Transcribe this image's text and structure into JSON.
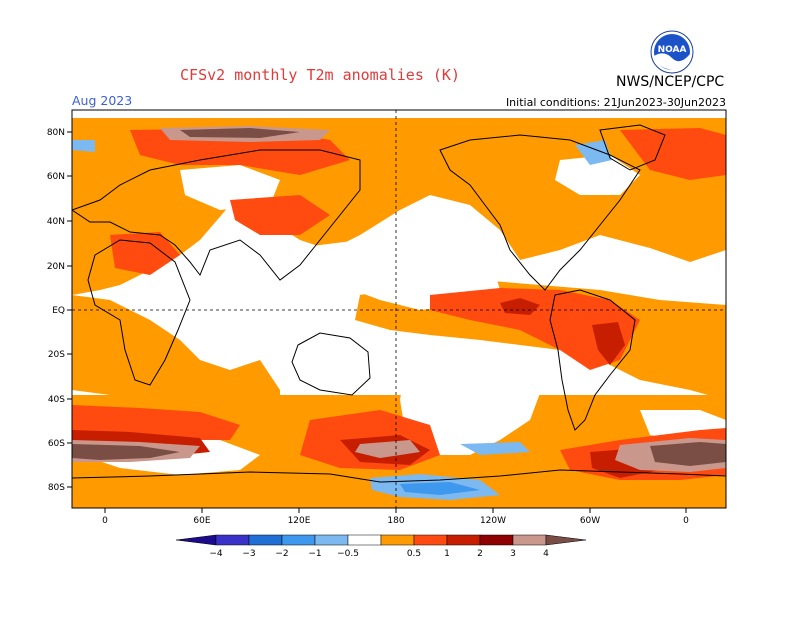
{
  "title": "CFSv2 monthly T2m anomalies (K)",
  "period": "Aug 2023",
  "initial_conditions": "Initial conditions: 21Jun2023-30Jun2023",
  "agency": "NWS/NCEP/CPC",
  "logo_text": "NOAA",
  "axes": {
    "lat_labels": [
      "80N",
      "60N",
      "40N",
      "20N",
      "EQ",
      "20S",
      "40S",
      "60S",
      "80S"
    ],
    "lon_labels": [
      "0",
      "60E",
      "120E",
      "180",
      "120W",
      "60W",
      "0"
    ]
  },
  "colorbar": {
    "labels": [
      "−4",
      "−3",
      "−2",
      "−1",
      "−0.5",
      "0.5",
      "1",
      "2",
      "3",
      "4"
    ],
    "colors": [
      "#1c0b8c",
      "#3a32c8",
      "#1f6fd6",
      "#3d98ee",
      "#7cb9f0",
      "#ffffff",
      "#ff9a00",
      "#ff4a10",
      "#c81e00",
      "#8f0000",
      "#c9978c",
      "#7a4e44"
    ]
  },
  "map": {
    "type": "filled anomaly map",
    "projection": "cylindrical equidistant",
    "lon_range": [
      -20,
      380
    ],
    "lat_range": [
      -90,
      90
    ],
    "units": "K"
  }
}
